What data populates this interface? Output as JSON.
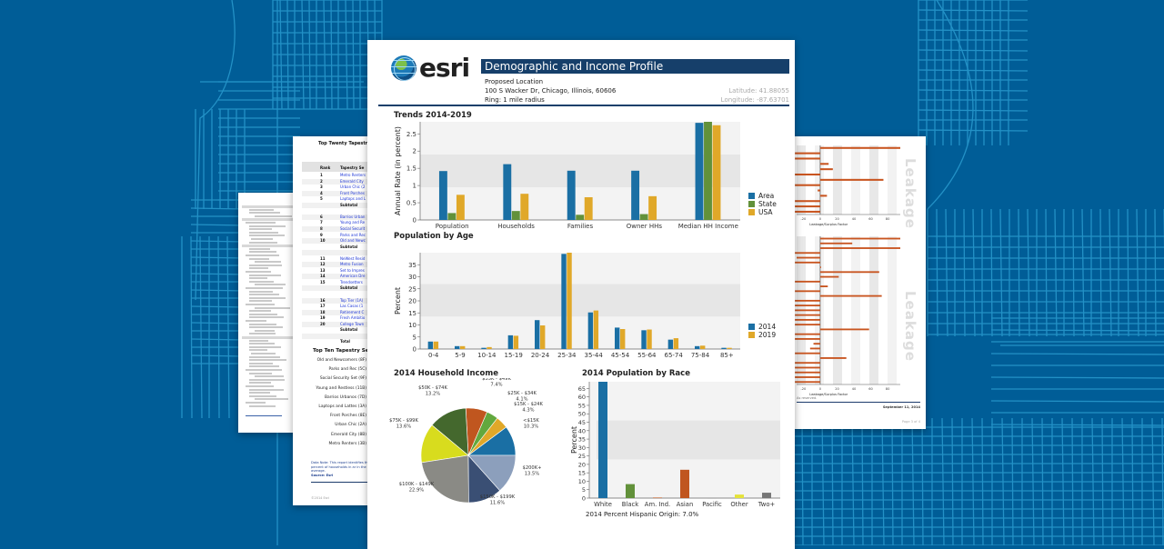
{
  "colors": {
    "background": "#005d97",
    "map_lines": "#2fa3d6",
    "title_bar": "#163f6a",
    "area": "#1a6fa4",
    "state": "#62913a",
    "usa": "#e0a829",
    "leakage_bar": "#c8541f"
  },
  "main_page": {
    "logo_text": "esri",
    "title": "Demographic and Income Profile",
    "location_label": "Proposed Location",
    "address": "100 S Wacker Dr, Chicago, Illinois, 60606",
    "ring": "Ring: 1 mile radius",
    "latitude": "Latitude: 41.88055",
    "longitude": "Longitude: -87.63701",
    "trends_title": "Trends 2014-2019",
    "age_title": "Population by Age",
    "income_title": "2014 Household Income",
    "race_title": "2014 Population by Race",
    "hispanic_note": "2014 Percent Hispanic Origin: 7.0%"
  },
  "chart_data": [
    {
      "type": "bar",
      "title": "Trends 2014-2019",
      "xlabel": "",
      "ylabel": "Annual Rate (in percent)",
      "categories": [
        "Population",
        "Households",
        "Families",
        "Owner HHs",
        "Median HH Income"
      ],
      "series": [
        {
          "name": "Area",
          "values": [
            1.42,
            1.62,
            1.43,
            1.43,
            2.82
          ]
        },
        {
          "name": "State",
          "values": [
            0.2,
            0.26,
            0.15,
            0.17,
            2.85
          ]
        },
        {
          "name": "USA",
          "values": [
            0.73,
            0.76,
            0.66,
            0.69,
            2.75
          ]
        }
      ],
      "ylim": [
        0,
        2.85
      ],
      "yticks": [
        "0",
        "0.5",
        "1",
        "1.5",
        "2",
        "2.5"
      ],
      "legend_position": "right"
    },
    {
      "type": "bar",
      "title": "Population by Age",
      "xlabel": "",
      "ylabel": "Percent",
      "categories": [
        "0-4",
        "5-9",
        "10-14",
        "15-19",
        "20-24",
        "25-34",
        "35-44",
        "45-54",
        "55-64",
        "65-74",
        "75-84",
        "85+"
      ],
      "series": [
        {
          "name": "2014",
          "values": [
            3.1,
            1.2,
            0.5,
            5.7,
            12.0,
            39.5,
            15.2,
            8.9,
            7.8,
            3.9,
            1.2,
            0.5
          ]
        },
        {
          "name": "2019",
          "values": [
            3.1,
            1.2,
            0.8,
            5.5,
            9.8,
            40.2,
            16.0,
            8.3,
            8.1,
            4.5,
            1.4,
            0.5
          ]
        }
      ],
      "ylim": [
        0,
        40
      ],
      "yticks": [
        "0",
        "5",
        "10",
        "15",
        "20",
        "25",
        "30",
        "35"
      ],
      "legend_position": "right"
    },
    {
      "type": "pie",
      "title": "2014 Household Income",
      "slices": [
        {
          "label": "<$15K",
          "value": 10.3,
          "color": "#1a6fa4"
        },
        {
          "label": "$15K - $24K",
          "value": 4.3,
          "color": "#e0a829"
        },
        {
          "label": "$25K - $34K",
          "value": 4.1,
          "color": "#62a83e"
        },
        {
          "label": "$35K - $49K",
          "value": 7.4,
          "color": "#c0561f"
        },
        {
          "label": "$50K - $74K",
          "value": 13.2,
          "color": "#44682d"
        },
        {
          "label": "$75K - $99K",
          "value": 13.6,
          "color": "#d8dc1e"
        },
        {
          "label": "$100K - $149K",
          "value": 22.9,
          "color": "#8a8a85"
        },
        {
          "label": "$150K - $199K",
          "value": 11.6,
          "color": "#3a4f74"
        },
        {
          "label": "$200K+",
          "value": 13.5,
          "color": "#8c9fbc"
        }
      ]
    },
    {
      "type": "bar",
      "title": "2014 Population by Race",
      "xlabel": "",
      "ylabel": "Percent",
      "categories": [
        "White",
        "Black",
        "Am. Ind.",
        "Asian",
        "Pacific",
        "Other",
        "Two+"
      ],
      "values": [
        69.0,
        8.3,
        0.3,
        16.8,
        0.1,
        2.1,
        3.2
      ],
      "colors": [
        "#1a6fa4",
        "#62913a",
        "#c0561f",
        "#c0561f",
        "#888888",
        "#e4e23a",
        "#777777"
      ],
      "ylim": [
        0,
        69
      ],
      "yticks": [
        "0",
        "5",
        "10",
        "15",
        "20",
        "25",
        "30",
        "35",
        "40",
        "45",
        "50",
        "55",
        "60",
        "65"
      ]
    },
    {
      "type": "bar",
      "title": "Leakage (upper panel)",
      "xlabel": "Leakage/Surplus Factor",
      "orientation": "horizontal",
      "values": [
        100,
        -30,
        -30,
        10,
        15,
        -30,
        75,
        -30,
        -3,
        8,
        -30,
        -30,
        -30
      ],
      "xticks": [
        "-20",
        "0",
        "20",
        "40",
        "60",
        "80"
      ],
      "xlim": [
        -28,
        95
      ],
      "side_label": "Leakage"
    },
    {
      "type": "bar",
      "title": "Leakage (lower panel)",
      "xlabel": "Leakage/Surplus Factor",
      "orientation": "horizontal",
      "values": [
        100,
        38,
        100,
        -30,
        -28,
        -30,
        1,
        70,
        22,
        -30,
        9,
        -30,
        73,
        -30,
        -30,
        -30,
        -30,
        -30,
        -30,
        58,
        -30,
        -30,
        -8,
        -12,
        -30,
        31,
        -30,
        -30,
        -30,
        -30,
        -30
      ],
      "xticks": [
        "-20",
        "0",
        "20",
        "40",
        "60",
        "80"
      ],
      "xlim": [
        -28,
        95
      ],
      "side_label": "Leakage"
    }
  ],
  "tapestry_page": {
    "title": "Top Twenty Tapestry",
    "col_rank": "Rank",
    "col_segment": "Tapestry Se",
    "rows": [
      {
        "rank": "1",
        "name": "Metro Renters"
      },
      {
        "rank": "2",
        "name": "Emerald City"
      },
      {
        "rank": "3",
        "name": "Urban Chic (2"
      },
      {
        "rank": "4",
        "name": "Front Porches"
      },
      {
        "rank": "5",
        "name": "Laptops and L"
      },
      {
        "rank": "",
        "name": "Subtotal",
        "sub": true
      },
      {
        "rank": "",
        "name": ""
      },
      {
        "rank": "6",
        "name": "Barrios Urban"
      },
      {
        "rank": "7",
        "name": "Young and Re"
      },
      {
        "rank": "8",
        "name": "Social Securit"
      },
      {
        "rank": "9",
        "name": "Parks and Rec"
      },
      {
        "rank": "10",
        "name": "Old and Newc"
      },
      {
        "rank": "",
        "name": "Subtotal",
        "sub": true
      },
      {
        "rank": "",
        "name": ""
      },
      {
        "rank": "11",
        "name": "NeWest Resid"
      },
      {
        "rank": "12",
        "name": "Metro Fusion"
      },
      {
        "rank": "13",
        "name": "Set to Impres"
      },
      {
        "rank": "14",
        "name": "American Dre"
      },
      {
        "rank": "15",
        "name": "Trendsetters"
      },
      {
        "rank": "",
        "name": "Subtotal",
        "sub": true
      },
      {
        "rank": "",
        "name": ""
      },
      {
        "rank": "16",
        "name": "Top Tier (1A)"
      },
      {
        "rank": "17",
        "name": "Las Casas (1"
      },
      {
        "rank": "18",
        "name": "Retirement C"
      },
      {
        "rank": "19",
        "name": "Fresh Ambitio"
      },
      {
        "rank": "20",
        "name": "College Town"
      },
      {
        "rank": "",
        "name": "Subtotal",
        "sub": true
      },
      {
        "rank": "",
        "name": ""
      },
      {
        "rank": "",
        "name": "Total",
        "sub": true
      }
    ],
    "top_ten_title": "Top Ten Tapestry Se",
    "top_ten": [
      "Old and Newcomers (8F)",
      "Parks and Rec (5C)",
      "Social Security Set (9F)",
      "Young and Restless (11B)",
      "Barrios Urbanos (7D)",
      "Laptops and Lattes (3A)",
      "Front Porches (8E)",
      "Urban Chic (2A)",
      "Emerald City (8B)",
      "Metro Renters (3B)"
    ],
    "data_note": "Data Note: This report identifies the percent of households in ar in the US average.",
    "source": "Source: Esri",
    "footer": "©2014 Esri"
  },
  "left_page": {
    "rows": 62
  },
  "right_page": {
    "xlabel": "Leakage/Surplus Factor",
    "side_label": "Leakage",
    "date": "September 11, 2014",
    "page": "Page 3 of 4"
  }
}
